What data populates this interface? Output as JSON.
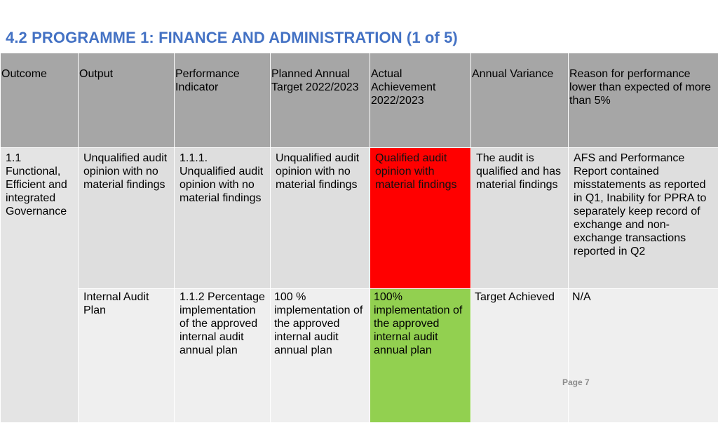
{
  "title": "4.2 PROGRAMME 1: FINANCE AND ADMINISTRATION (1 of 5)",
  "headers": [
    "Outcome",
    "Output",
    "Performance Indicator",
    "Planned Annual Target 2022/2023",
    "Actual Achievement 2022/2023",
    "Annual Variance",
    "Reason for performance lower than expected of more than 5%"
  ],
  "rows": [
    {
      "outcome": "1.1 Functional, Efficient and integrated Governance",
      "output": "Unqualified audit opinion with no material findings",
      "indicator": "1.1.1. Unqualified audit opinion with no material findings",
      "target": "Unqualified audit opinion with no material findings",
      "achievement": "Qualified audit opinion with material findings",
      "variance": "The audit is qualified and has material findings",
      "reason": "AFS and Performance Report contained misstatements as reported in Q1, Inability for PPRA to separately keep record of exchange and non-exchange transactions reported in Q2"
    },
    {
      "output": "Internal Audit Plan",
      "indicator": "1.1.2 Percentage implementation of the approved internal audit annual plan",
      "target": "100 % implementation of the approved internal audit annual plan",
      "achievement": "100% implementation of the approved internal audit annual plan",
      "variance": "Target Achieved",
      "reason": "N/A"
    }
  ],
  "status_colors": {
    "not_achieved": "#FF0000",
    "achieved": "#92D050"
  },
  "title_color": "#4472C4",
  "page_label": "Page 7"
}
